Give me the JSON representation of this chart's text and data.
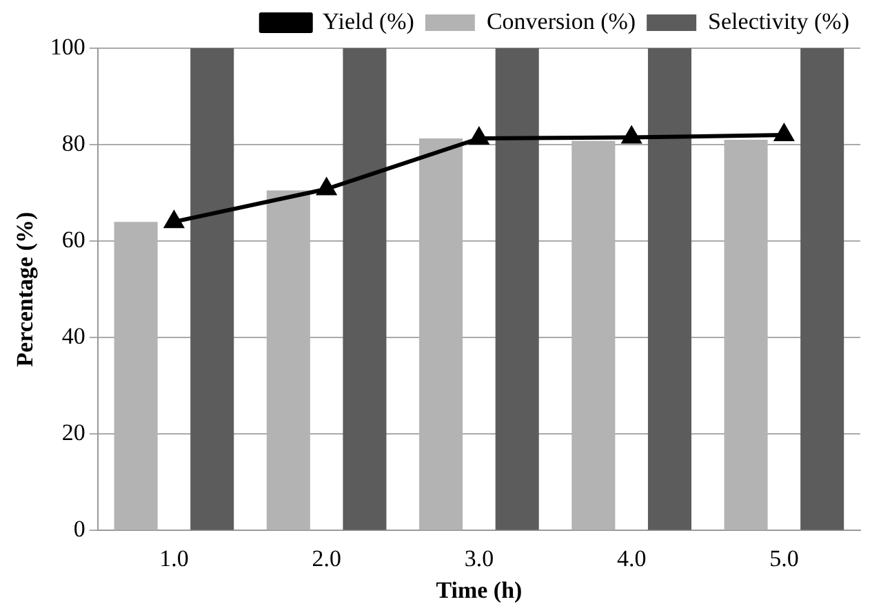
{
  "chart_data": {
    "type": "bar",
    "xlabel": "Time (h)",
    "ylabel": "Percentage (%)",
    "categories": [
      "1.0",
      "2.0",
      "3.0",
      "4.0",
      "5.0"
    ],
    "series": [
      {
        "name": "Conversion (%)",
        "color": "#b3b3b3",
        "values": [
          64,
          70.5,
          81.3,
          80.8,
          81
        ]
      },
      {
        "name": "Selectivity (%)",
        "color": "#5c5c5c",
        "values": [
          100,
          100,
          100,
          100,
          100
        ]
      },
      {
        "name": "Yield (%)",
        "type": "line",
        "color": "#000000",
        "values": [
          64,
          70.8,
          81.3,
          81.5,
          82
        ],
        "marker": "triangle"
      }
    ],
    "ylim": [
      0,
      100
    ],
    "yticks": [
      0,
      20,
      40,
      60,
      80,
      100
    ],
    "grid": "y",
    "legend": "top"
  }
}
